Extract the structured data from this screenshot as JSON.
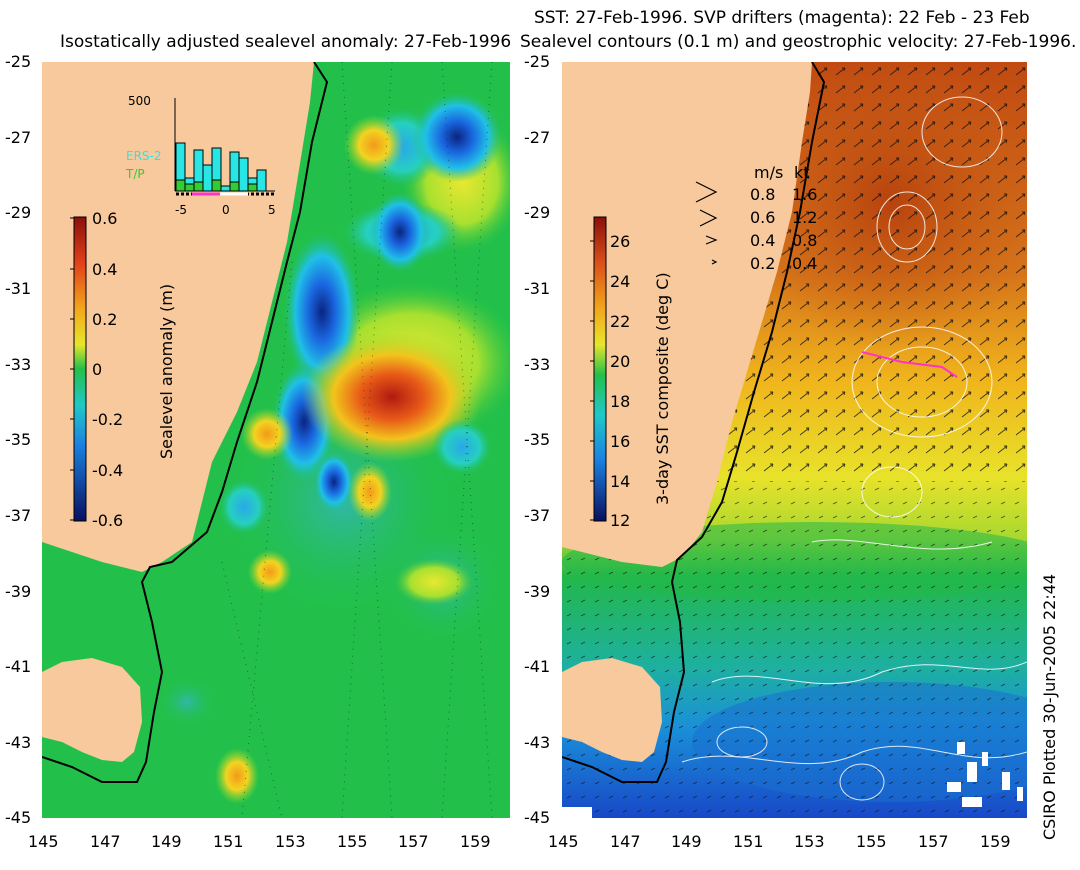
{
  "left_panel": {
    "title": "Isostatically adjusted sealevel anomaly: 27-Feb-1996",
    "y_ticks": [
      "-25",
      "-27",
      "-29",
      "-31",
      "-33",
      "-35",
      "-37",
      "-39",
      "-41",
      "-43",
      "-45"
    ],
    "x_ticks": [
      "145",
      "147",
      "149",
      "151",
      "153",
      "155",
      "157",
      "159"
    ],
    "colorbar": {
      "label": "Sealevel anomaly (m)",
      "ticks": [
        "0.6",
        "0.4",
        "0.2",
        "0",
        "-0.2",
        "-0.4",
        "-0.6"
      ]
    },
    "inset": {
      "y_label": "500",
      "legend": [
        "ERS-2",
        "T/P"
      ],
      "x_ticks": [
        "-5",
        "0",
        "5"
      ],
      "ers2_color": "#29e6e6",
      "tp_color": "#33cc33"
    }
  },
  "right_panel": {
    "title_line1": "SST: 27-Feb-1996. SVP drifters (magenta): 22 Feb - 23 Feb",
    "title_line2": "Sealevel contours (0.1 m) and geostrophic velocity: 27-Feb-1996.",
    "y_ticks": [
      "-25",
      "-27",
      "-29",
      "-31",
      "-33",
      "-35",
      "-37",
      "-39",
      "-41",
      "-43",
      "-45"
    ],
    "x_ticks": [
      "145",
      "147",
      "149",
      "151",
      "153",
      "155",
      "157",
      "159"
    ],
    "colorbar": {
      "label": "3-day SST composite (deg C)",
      "ticks": [
        "26",
        "24",
        "22",
        "20",
        "18",
        "16",
        "14",
        "12"
      ]
    },
    "velocity_legend": {
      "header_ms": "m/s",
      "header_kt": "kt",
      "rows": [
        {
          "ms": "0.8",
          "kt": "1.6"
        },
        {
          "ms": "0.6",
          "kt": "1.2"
        },
        {
          "ms": "0.4",
          "kt": "0.8"
        },
        {
          "ms": "0.2",
          "kt": "0.4"
        }
      ]
    },
    "drifter_color": "#ff33cc"
  },
  "credit": "CSIRO Plotted 30-Jun-2005 22:44",
  "colors": {
    "land": "#f7c99c",
    "background_green": "#22c04a"
  }
}
